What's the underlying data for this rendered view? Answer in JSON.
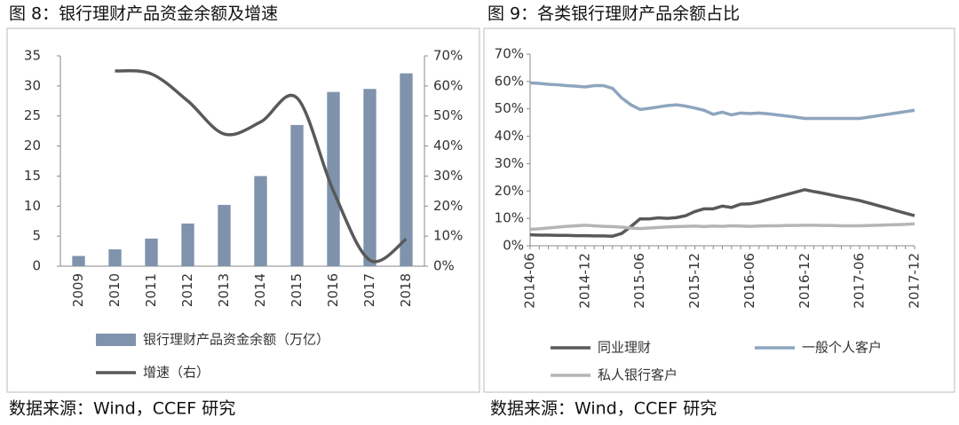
{
  "chart_data": [
    {
      "type": "bar",
      "title": "图 8：银行理财产品资金余额及增速",
      "source": "数据来源：Wind，CCEF 研究",
      "categories": [
        "2009",
        "2010",
        "2011",
        "2012",
        "2013",
        "2014",
        "2015",
        "2016",
        "2017",
        "2018"
      ],
      "series": [
        {
          "name": "银行理财产品资金余额（万亿）",
          "color": "#7f93ad",
          "values": [
            1.7,
            2.8,
            4.6,
            7.1,
            10.2,
            15.0,
            23.5,
            29.0,
            29.5,
            32.1
          ]
        },
        {
          "name": "增速（右）",
          "color": "#595959",
          "type": "line",
          "axis": "y2",
          "smooth": true,
          "values": [
            null,
            65,
            64,
            55,
            44,
            48,
            56,
            25,
            2,
            9
          ]
        }
      ],
      "ylim": [
        0,
        35
      ],
      "yticks": [
        0,
        5,
        10,
        15,
        20,
        25,
        30,
        35
      ],
      "y2lim": [
        0,
        70
      ],
      "y2ticks": [
        {
          "value": 0,
          "label": "0%"
        },
        {
          "value": 10,
          "label": "10%"
        },
        {
          "value": 20,
          "label": "20%"
        },
        {
          "value": 30,
          "label": "30%"
        },
        {
          "value": 40,
          "label": "40%"
        },
        {
          "value": 50,
          "label": "50%"
        },
        {
          "value": 60,
          "label": "60%"
        },
        {
          "value": 70,
          "label": "70%"
        }
      ]
    },
    {
      "type": "line",
      "title": "图 9：各类银行理财产品余额占比",
      "source": "数据来源：Wind，CCEF 研究",
      "categories": [
        "2014-06",
        null,
        null,
        null,
        null,
        null,
        "2014-12",
        null,
        null,
        null,
        null,
        null,
        "2015-06",
        null,
        null,
        null,
        null,
        null,
        "2015-12",
        null,
        null,
        null,
        null,
        null,
        "2016-06",
        null,
        null,
        null,
        null,
        null,
        "2016-12",
        null,
        null,
        null,
        null,
        null,
        "2017-06",
        null,
        null,
        null,
        null,
        null,
        "2017-12"
      ],
      "series": [
        {
          "name": "同业理财",
          "color": "#595959",
          "values": [
            4,
            3.9,
            3.9,
            3.8,
            3.8,
            3.7,
            3.7,
            3.6,
            3.6,
            3.5,
            4.5,
            7,
            9.8,
            9.8,
            10.2,
            10,
            10.3,
            11,
            12.5,
            13.5,
            13.5,
            14.5,
            14,
            15.2,
            15.3,
            16,
            16.9,
            17.8,
            18.7,
            19.6,
            20.5,
            19.8,
            19.2,
            18.5,
            17.8,
            17.2,
            16.5,
            15.6,
            14.7,
            13.8,
            12.8,
            11.9,
            11
          ]
        },
        {
          "name": "一般个人客户",
          "color": "#8ea5bf",
          "values": [
            59.5,
            59.3,
            59,
            58.8,
            58.5,
            58.3,
            58,
            58.5,
            58.5,
            57.5,
            54,
            51.5,
            49.8,
            50.2,
            50.7,
            51.2,
            51.5,
            51,
            50.3,
            49.5,
            48,
            48.8,
            47.8,
            48.5,
            48.3,
            48.5,
            48.2,
            47.8,
            47.4,
            47,
            46.5,
            46.5,
            46.5,
            46.5,
            46.5,
            46.5,
            46.5,
            47,
            47.5,
            48,
            48.5,
            49,
            49.5
          ]
        },
        {
          "name": "私人银行客户",
          "color": "#b5b5b5",
          "values": [
            6,
            6.2,
            6.5,
            6.8,
            7.1,
            7.3,
            7.5,
            7.3,
            7.1,
            7,
            6.8,
            6.5,
            6.3,
            6.5,
            6.7,
            6.9,
            7,
            7.1,
            7.2,
            7,
            7.2,
            7.1,
            7.3,
            7.2,
            7.1,
            7.2,
            7.3,
            7.3,
            7.4,
            7.4,
            7.5,
            7.5,
            7.4,
            7.4,
            7.3,
            7.3,
            7.3,
            7.4,
            7.5,
            7.6,
            7.7,
            7.8,
            8
          ]
        }
      ],
      "ylim": [
        0,
        70
      ],
      "yticks": [
        {
          "value": 0,
          "label": "0%"
        },
        {
          "value": 10,
          "label": "10%"
        },
        {
          "value": 20,
          "label": "20%"
        },
        {
          "value": 30,
          "label": "30%"
        },
        {
          "value": 40,
          "label": "40%"
        },
        {
          "value": 50,
          "label": "50%"
        },
        {
          "value": 60,
          "label": "60%"
        },
        {
          "value": 70,
          "label": "70%"
        }
      ]
    }
  ]
}
